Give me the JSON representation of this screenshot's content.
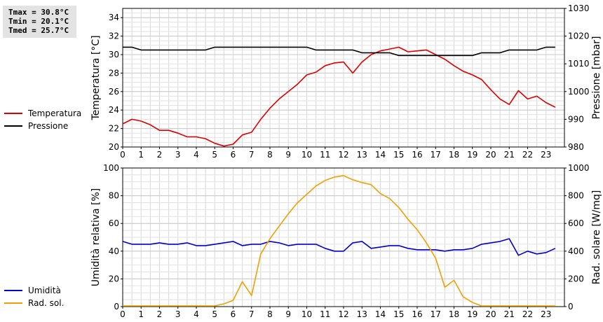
{
  "stats": {
    "tmax": "Tmax = 30.8°C",
    "tmin": "Tmin = 20.1°C",
    "tmed": "Tmed = 25.7°C"
  },
  "legend_top": [
    {
      "label": "Temperatura",
      "color": "#dd0000"
    },
    {
      "label": "Pressione",
      "color": "#000000"
    }
  ],
  "legend_bottom": [
    {
      "label": "Umidità",
      "color": "#0000cc"
    },
    {
      "label": "Rad. sol.",
      "color": "#f0a000"
    }
  ],
  "chart_data": [
    {
      "type": "line",
      "ylabel": "Temperatura [°C]",
      "y2label": "Pressione [mbar]",
      "xlim": [
        0,
        24
      ],
      "ylim": [
        20,
        35
      ],
      "y2lim": [
        980,
        1030
      ],
      "x_ticks": [
        "0",
        "0.5",
        "1",
        "1.5",
        "2",
        "2.5",
        "3",
        "3.5",
        "4",
        "4.5",
        "5",
        "5.5",
        "6",
        "6.5",
        "7",
        "7.5",
        "8",
        "8.5",
        "9",
        "9.5",
        "10",
        "10.5",
        "11",
        "11.5",
        "12",
        "12.5",
        "13",
        "13.5",
        "14",
        "14.5",
        "15",
        "15.5",
        "16",
        "16.5",
        "17",
        "17.5",
        "18",
        "18.5",
        "19",
        "19.5",
        "20",
        "20.5",
        "21",
        "21.5",
        "22",
        "22.5",
        "23",
        "23.5"
      ],
      "x_tick_labels": [
        "0",
        "1",
        "2",
        "3",
        "4",
        "5",
        "6",
        "7",
        "8",
        "9",
        "10",
        "11",
        "12",
        "13",
        "14",
        "15",
        "16",
        "17",
        "18",
        "19",
        "20",
        "21",
        "22",
        "23"
      ],
      "y_ticks": [
        "20",
        "22",
        "24",
        "26",
        "28",
        "30",
        "32",
        "34"
      ],
      "y2_ticks": [
        "980",
        "990",
        "1000",
        "1010",
        "1020",
        "1030"
      ],
      "grid": true,
      "series": [
        {
          "name": "Temperatura",
          "axis": "left",
          "color": "#dd0000",
          "x": [
            0,
            0.5,
            1,
            1.5,
            2,
            2.5,
            3,
            3.5,
            4,
            4.5,
            5,
            5.5,
            6,
            6.5,
            7,
            7.5,
            8,
            8.5,
            9,
            9.5,
            10,
            10.5,
            11,
            11.5,
            12,
            12.5,
            13,
            13.5,
            14,
            14.5,
            15,
            15.5,
            16,
            16.5,
            17,
            17.5,
            18,
            18.5,
            19,
            19.5,
            20,
            20.5,
            21,
            21.5,
            22,
            22.5,
            23,
            23.5
          ],
          "values": [
            22.5,
            23.0,
            22.8,
            22.4,
            21.8,
            21.8,
            21.5,
            21.1,
            21.1,
            20.9,
            20.4,
            20.1,
            20.3,
            21.3,
            21.6,
            23.0,
            24.2,
            25.2,
            26.0,
            26.8,
            27.8,
            28.1,
            28.8,
            29.1,
            29.2,
            28.0,
            29.2,
            30.0,
            30.4,
            30.6,
            30.8,
            30.3,
            30.4,
            30.5,
            30.0,
            29.5,
            28.8,
            28.2,
            27.8,
            27.3,
            26.2,
            25.2,
            24.6,
            26.1,
            25.2,
            25.5,
            24.8,
            24.3
          ]
        },
        {
          "name": "Pressione",
          "axis": "right",
          "color": "#000000",
          "x": [
            0,
            0.5,
            1,
            1.5,
            2,
            2.5,
            3,
            3.5,
            4,
            4.5,
            5,
            5.5,
            6,
            6.5,
            7,
            7.5,
            8,
            8.5,
            9,
            9.5,
            10,
            10.5,
            11,
            11.5,
            12,
            12.5,
            13,
            13.5,
            14,
            14.5,
            15,
            15.5,
            16,
            16.5,
            17,
            17.5,
            18,
            18.5,
            19,
            19.5,
            20,
            20.5,
            21,
            21.5,
            22,
            22.5,
            23,
            23.5
          ],
          "values": [
            1016,
            1016,
            1015,
            1015,
            1015,
            1015,
            1015,
            1015,
            1015,
            1015,
            1016,
            1016,
            1016,
            1016,
            1016,
            1016,
            1016,
            1016,
            1016,
            1016,
            1016,
            1015,
            1015,
            1015,
            1015,
            1015,
            1014,
            1014,
            1014,
            1014,
            1013,
            1013,
            1013,
            1013,
            1013,
            1013,
            1013,
            1013,
            1013,
            1014,
            1014,
            1014,
            1015,
            1015,
            1015,
            1015,
            1016,
            1016
          ]
        }
      ]
    },
    {
      "type": "line",
      "ylabel": "Umidità relativa [%]",
      "y2label": "Rad. solare [W/mq]",
      "xlim": [
        0,
        24
      ],
      "ylim": [
        0,
        100
      ],
      "y2lim": [
        0,
        1000
      ],
      "x_tick_labels": [
        "0",
        "1",
        "2",
        "3",
        "4",
        "5",
        "6",
        "7",
        "8",
        "9",
        "10",
        "11",
        "12",
        "13",
        "14",
        "15",
        "16",
        "17",
        "18",
        "19",
        "20",
        "21",
        "22",
        "23"
      ],
      "y_ticks": [
        "0",
        "20",
        "40",
        "60",
        "80",
        "100"
      ],
      "y2_ticks": [
        "0",
        "200",
        "400",
        "600",
        "800",
        "1000"
      ],
      "grid": true,
      "series": [
        {
          "name": "Umidità",
          "axis": "left",
          "color": "#0000cc",
          "x": [
            0,
            0.5,
            1,
            1.5,
            2,
            2.5,
            3,
            3.5,
            4,
            4.5,
            5,
            5.5,
            6,
            6.5,
            7,
            7.5,
            8,
            8.5,
            9,
            9.5,
            10,
            10.5,
            11,
            11.5,
            12,
            12.5,
            13,
            13.5,
            14,
            14.5,
            15,
            15.5,
            16,
            16.5,
            17,
            17.5,
            18,
            18.5,
            19,
            19.5,
            20,
            20.5,
            21,
            21.5,
            22,
            22.5,
            23,
            23.5
          ],
          "values": [
            47,
            45,
            45,
            45,
            46,
            45,
            45,
            46,
            44,
            44,
            45,
            46,
            47,
            44,
            45,
            45,
            47,
            46,
            44,
            45,
            45,
            45,
            42,
            40,
            40,
            46,
            47,
            42,
            43,
            44,
            44,
            42,
            41,
            41,
            41,
            40,
            41,
            41,
            42,
            45,
            46,
            47,
            49,
            37,
            40,
            38,
            39,
            42
          ]
        },
        {
          "name": "Rad. sol.",
          "axis": "right",
          "color": "#f0a000",
          "x": [
            0,
            0.5,
            1,
            1.5,
            2,
            2.5,
            3,
            3.5,
            4,
            4.5,
            5,
            5.5,
            6,
            6.5,
            7,
            7.5,
            8,
            8.5,
            9,
            9.5,
            10,
            10.5,
            11,
            11.5,
            12,
            12.5,
            13,
            13.5,
            14,
            14.5,
            15,
            15.5,
            16,
            16.5,
            17,
            17.5,
            18,
            18.5,
            19,
            19.5,
            20,
            20.5,
            21,
            21.5,
            22,
            22.5,
            23,
            23.5
          ],
          "values": [
            5,
            5,
            5,
            5,
            5,
            5,
            5,
            5,
            5,
            5,
            5,
            20,
            45,
            180,
            80,
            380,
            490,
            580,
            670,
            750,
            810,
            870,
            910,
            935,
            945,
            915,
            895,
            880,
            815,
            780,
            715,
            630,
            555,
            460,
            350,
            140,
            190,
            70,
            30,
            5,
            5,
            5,
            5,
            5,
            5,
            5,
            5,
            5
          ]
        }
      ]
    }
  ]
}
